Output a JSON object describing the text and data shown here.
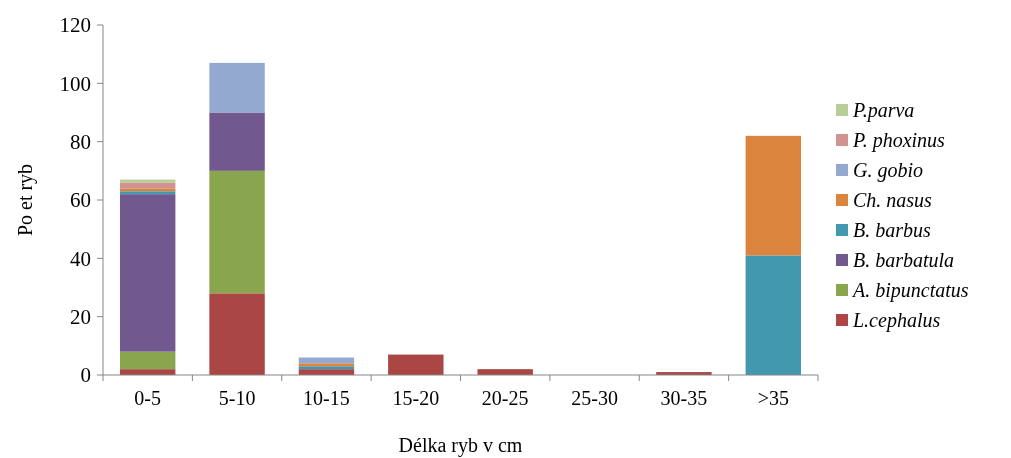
{
  "chart_data": {
    "type": "bar",
    "stacked": true,
    "xlabel": "Délka ryb v cm",
    "ylabel": "Po et ryb",
    "categories": [
      "0-5",
      "5-10",
      "10-15",
      "15-20",
      "20-25",
      "25-30",
      "30-35",
      ">35"
    ],
    "ylim": [
      0,
      120
    ],
    "yticks": [
      0,
      20,
      40,
      60,
      80,
      100,
      120
    ],
    "legend": "right",
    "grid": false,
    "series": [
      {
        "name": "L.cephalus",
        "color": "#aa4643",
        "values": [
          2,
          28,
          2,
          7,
          2,
          0,
          1,
          0
        ]
      },
      {
        "name": "A. bipunctatus",
        "color": "#89a54e",
        "values": [
          6,
          42,
          0,
          0,
          0,
          0,
          0,
          0
        ]
      },
      {
        "name": "B. barbatula",
        "color": "#71588f",
        "values": [
          54,
          20,
          0,
          0,
          0,
          0,
          0,
          0
        ]
      },
      {
        "name": "B. barbus",
        "color": "#4198af",
        "values": [
          1,
          0,
          1,
          0,
          0,
          0,
          0,
          41
        ]
      },
      {
        "name": "Ch. nasus",
        "color": "#db843d",
        "values": [
          1,
          0,
          1,
          0,
          0,
          0,
          0,
          41
        ]
      },
      {
        "name": "G. gobio",
        "color": "#93a9cf",
        "values": [
          0,
          17,
          2,
          0,
          0,
          0,
          0,
          0
        ]
      },
      {
        "name": "P. phoxinus",
        "color": "#d19392",
        "values": [
          2,
          0,
          0,
          0,
          0,
          0,
          0,
          0
        ]
      },
      {
        "name": "P.parva",
        "color": "#b9cd96",
        "values": [
          1,
          0,
          0,
          0,
          0,
          0,
          0,
          0
        ]
      }
    ]
  }
}
